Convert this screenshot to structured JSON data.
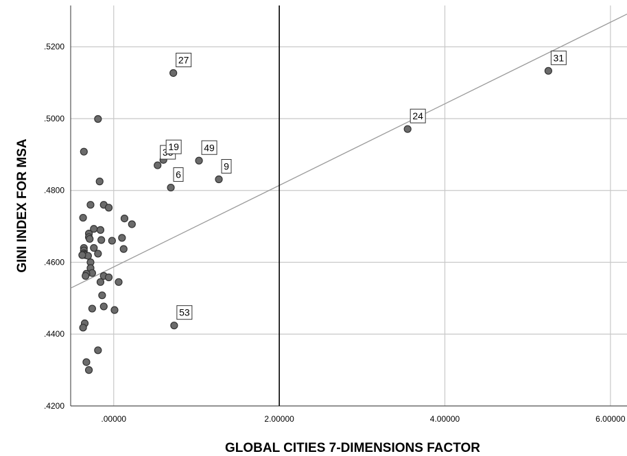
{
  "chart_data": {
    "type": "scatter",
    "xlabel": "GLOBAL CITIES 7-DIMENSIONS FACTOR",
    "ylabel": "GINI INDEX FOR MSA",
    "xlim": [
      -0.52,
      6.2
    ],
    "ylim": [
      0.42,
      0.5315
    ],
    "x_ticks": [
      0,
      2,
      4,
      6
    ],
    "x_tick_labels": [
      ".00000",
      "2.00000",
      "4.00000",
      "6.00000"
    ],
    "y_ticks": [
      0.42,
      0.44,
      0.46,
      0.48,
      0.5,
      0.52
    ],
    "y_tick_labels": [
      ".4200",
      ".4400",
      ".4600",
      ".4800",
      ".5000",
      ".5200"
    ],
    "grid": true,
    "reference_line_x": 2.0,
    "fit_line": {
      "x": [
        -0.52,
        6.2
      ],
      "y": [
        0.4528,
        0.5291
      ]
    },
    "points": [
      {
        "x": -0.19,
        "y": 0.4999
      },
      {
        "x": -0.26,
        "y": 0.4471
      },
      {
        "x": -0.33,
        "y": 0.4322
      },
      {
        "x": -0.3,
        "y": 0.43
      },
      {
        "x": -0.19,
        "y": 0.4355
      },
      {
        "x": -0.36,
        "y": 0.4908
      },
      {
        "x": -0.17,
        "y": 0.4825
      },
      {
        "x": -0.28,
        "y": 0.476
      },
      {
        "x": -0.12,
        "y": 0.476
      },
      {
        "x": -0.06,
        "y": 0.4752
      },
      {
        "x": -0.37,
        "y": 0.4724
      },
      {
        "x": -0.24,
        "y": 0.4693
      },
      {
        "x": -0.16,
        "y": 0.469
      },
      {
        "x": -0.3,
        "y": 0.468
      },
      {
        "x": -0.3,
        "y": 0.467
      },
      {
        "x": -0.29,
        "y": 0.4665
      },
      {
        "x": -0.15,
        "y": 0.4662
      },
      {
        "x": -0.02,
        "y": 0.466
      },
      {
        "x": -0.24,
        "y": 0.464
      },
      {
        "x": -0.36,
        "y": 0.464
      },
      {
        "x": -0.36,
        "y": 0.4633
      },
      {
        "x": -0.36,
        "y": 0.4625
      },
      {
        "x": -0.35,
        "y": 0.4622
      },
      {
        "x": -0.34,
        "y": 0.462
      },
      {
        "x": -0.31,
        "y": 0.4618
      },
      {
        "x": -0.38,
        "y": 0.462
      },
      {
        "x": -0.19,
        "y": 0.4624
      },
      {
        "x": -0.28,
        "y": 0.46
      },
      {
        "x": -0.28,
        "y": 0.4584
      },
      {
        "x": -0.26,
        "y": 0.457
      },
      {
        "x": -0.33,
        "y": 0.4568
      },
      {
        "x": -0.34,
        "y": 0.4562
      },
      {
        "x": -0.12,
        "y": 0.4562
      },
      {
        "x": -0.06,
        "y": 0.4558
      },
      {
        "x": -0.16,
        "y": 0.4545
      },
      {
        "x": -0.14,
        "y": 0.4508
      },
      {
        "x": -0.12,
        "y": 0.4477
      },
      {
        "x": -0.35,
        "y": 0.443
      },
      {
        "x": -0.37,
        "y": 0.4418
      },
      {
        "x": 0.13,
        "y": 0.4722
      },
      {
        "x": 0.22,
        "y": 0.4706
      },
      {
        "x": 0.1,
        "y": 0.4668
      },
      {
        "x": 0.12,
        "y": 0.4637
      },
      {
        "x": 0.06,
        "y": 0.4545
      },
      {
        "x": 0.01,
        "y": 0.4467
      },
      {
        "x": 0.72,
        "y": 0.5127,
        "label": "27"
      },
      {
        "x": 0.53,
        "y": 0.487,
        "label": "35"
      },
      {
        "x": 0.6,
        "y": 0.4885,
        "label": "19"
      },
      {
        "x": 1.03,
        "y": 0.4883,
        "label": "49"
      },
      {
        "x": 0.69,
        "y": 0.4808,
        "label": "6"
      },
      {
        "x": 1.27,
        "y": 0.4831,
        "label": "9"
      },
      {
        "x": 3.55,
        "y": 0.4971,
        "label": "24"
      },
      {
        "x": 5.25,
        "y": 0.5133,
        "label": "31"
      },
      {
        "x": 0.73,
        "y": 0.4424,
        "label": "53"
      }
    ]
  }
}
